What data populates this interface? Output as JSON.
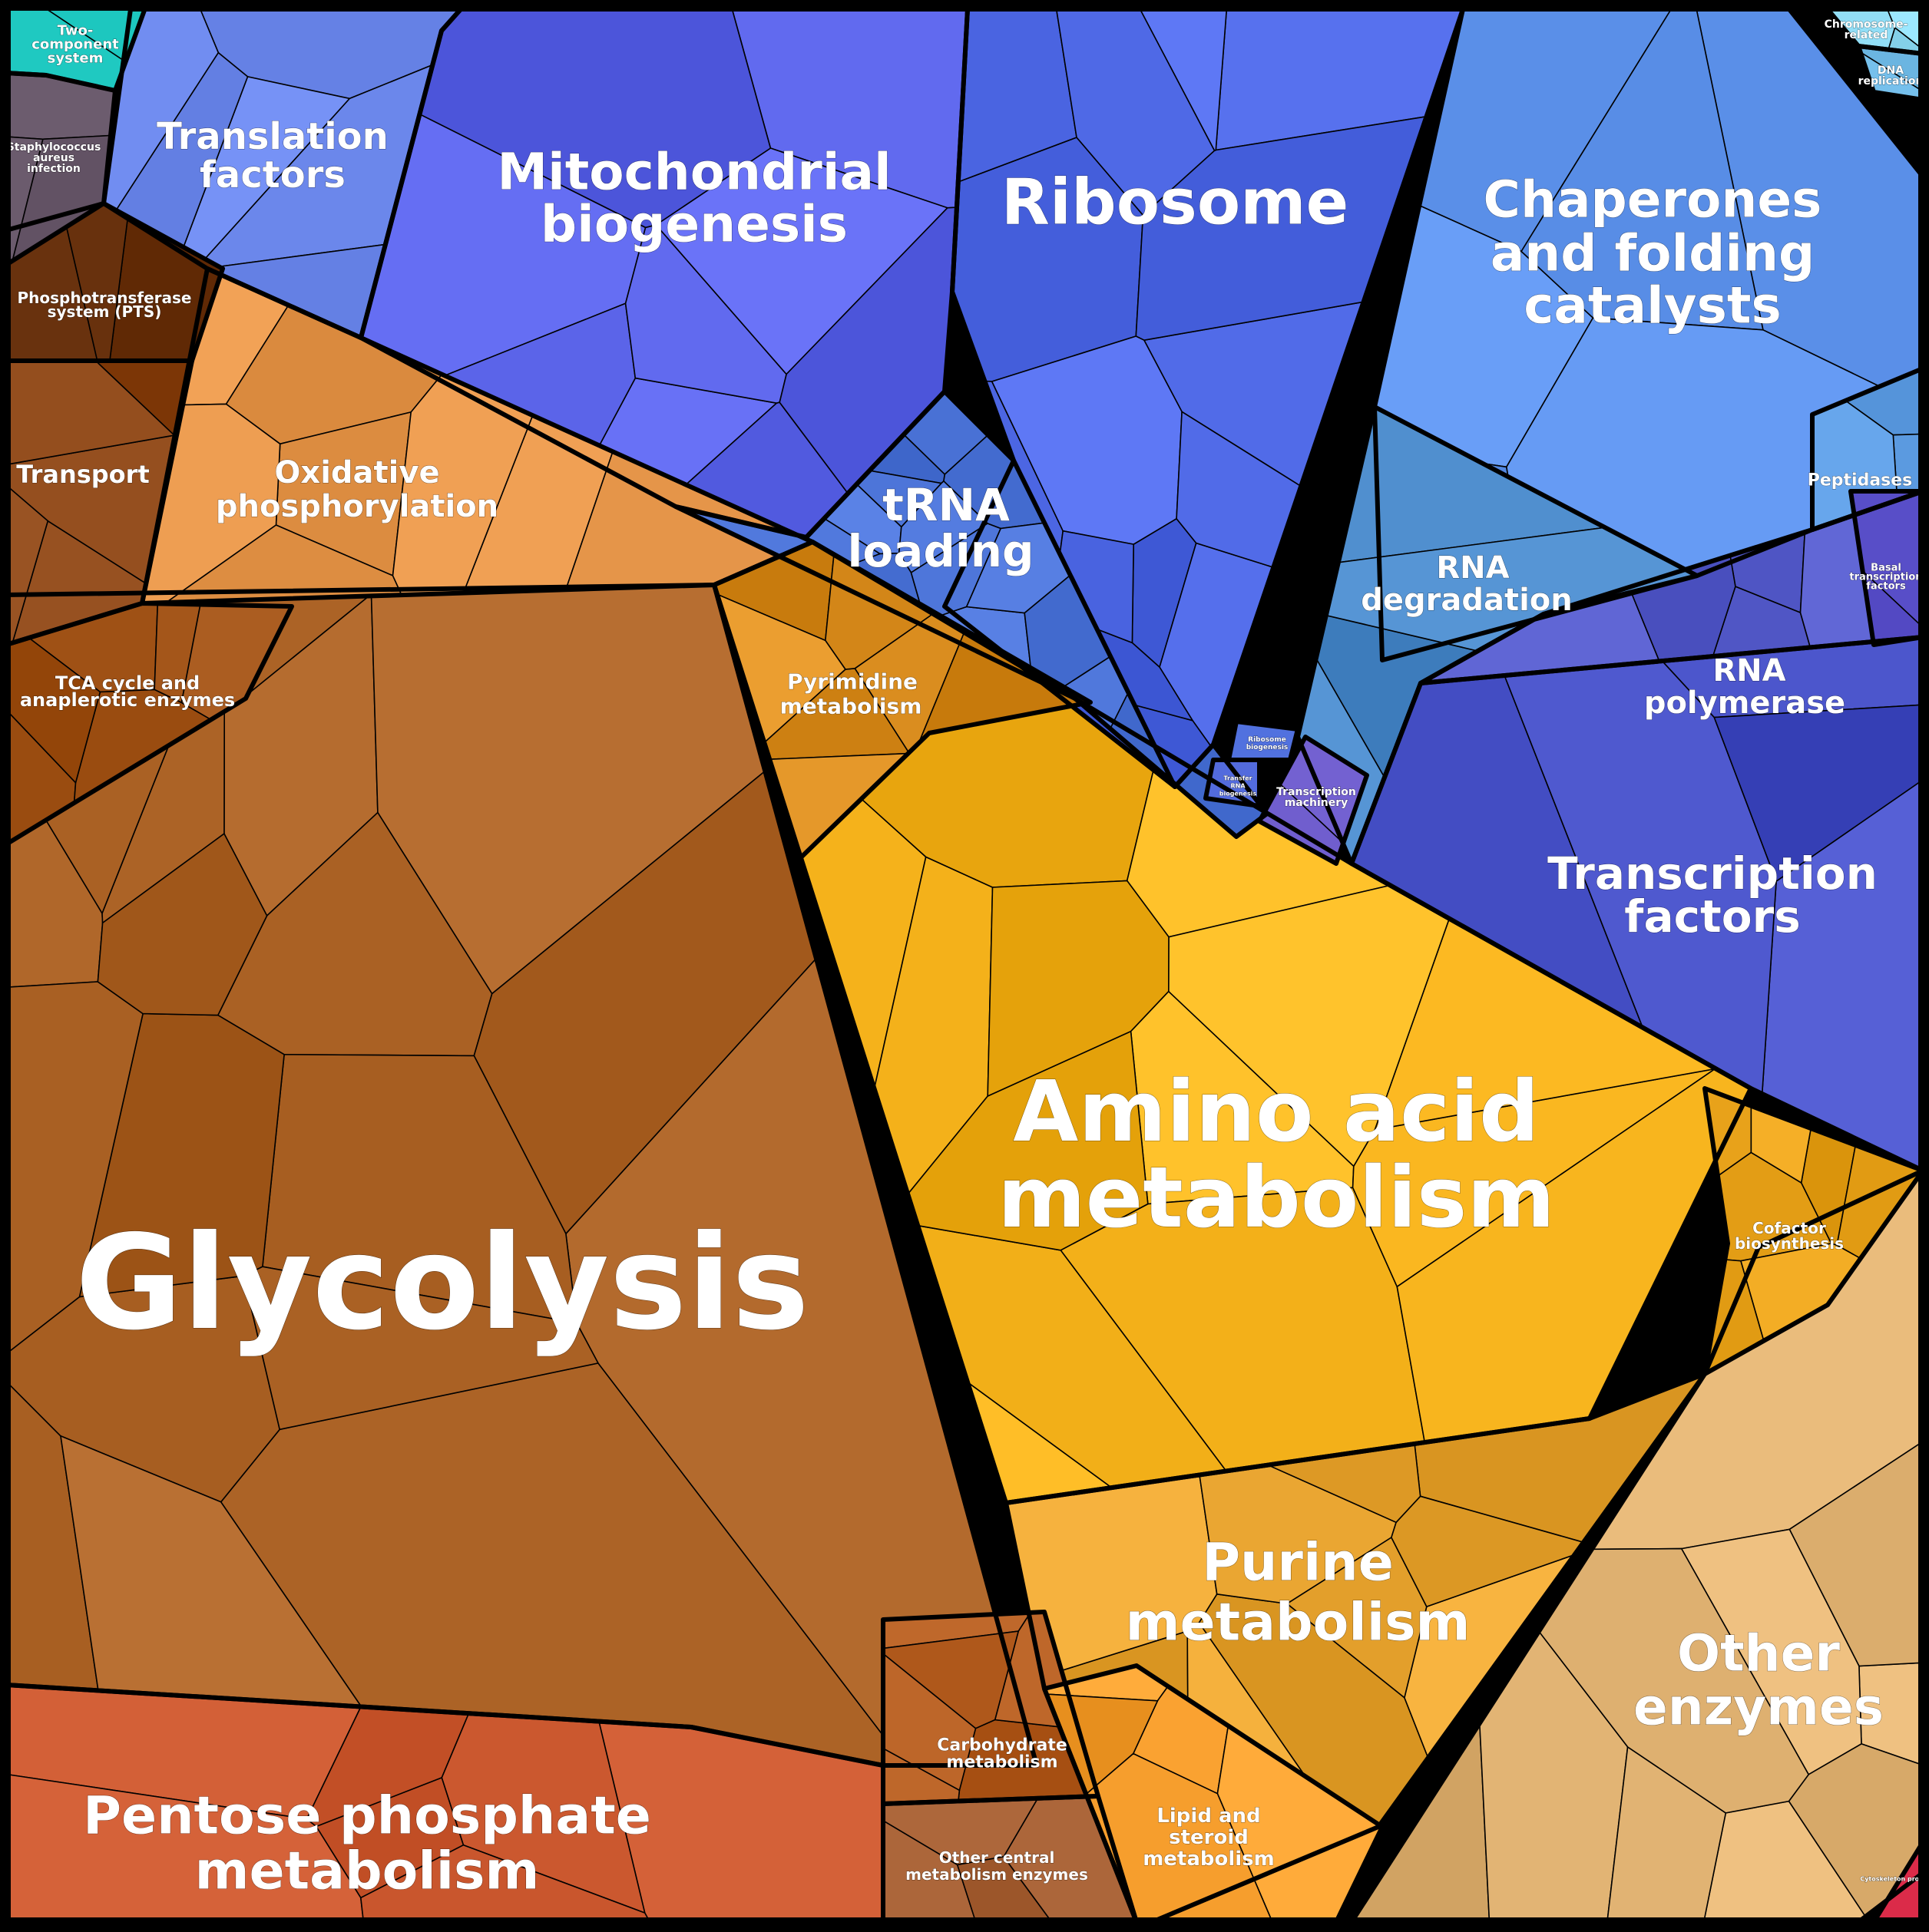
{
  "chart_data": {
    "type": "treemap",
    "subtype": "voronoi",
    "title": "",
    "groups": [
      {
        "name": "Glycolysis",
        "color": "#a85f22"
      },
      {
        "name": "Amino acid metabolism",
        "color": "#f6b31c"
      },
      {
        "name": "Ribosome",
        "color": "#4d67e4"
      },
      {
        "name": "Mitochondrial biogenesis",
        "color": "#5a63e8"
      },
      {
        "name": "Chaperones and folding catalysts",
        "color": "#5a8fe8"
      },
      {
        "name": "Transcription factors",
        "color": "#4650c6"
      },
      {
        "name": "Pentose phosphate metabolism",
        "color": "#c7542b"
      },
      {
        "name": "Purine metabolism",
        "color": "#e6a22e"
      },
      {
        "name": "Other enzymes",
        "color": "#e2b474"
      },
      {
        "name": "Oxidative phosphorylation",
        "color": "#e6964a"
      },
      {
        "name": "tRNA loading",
        "color": "#5078dc"
      },
      {
        "name": "Translation factors",
        "color": "#6a86ea"
      },
      {
        "name": "RNA polymerase",
        "color": "#4f55c4"
      },
      {
        "name": "RNA degradation",
        "color": "#4d8ccc"
      },
      {
        "name": "Transport",
        "color": "#8a4414"
      },
      {
        "name": "TCA cycle and anaplerotic enzymes",
        "color": "#a4561a"
      },
      {
        "name": "Pyrimidine metabolism",
        "color": "#d98c1e"
      },
      {
        "name": "Carbohydrate metabolism",
        "color": "#b0591c"
      },
      {
        "name": "Other central metabolism enzymes",
        "color": "#a05a2e"
      },
      {
        "name": "Lipid and steroid metabolism",
        "color": "#f39b2a"
      },
      {
        "name": "Cofactor biosynthesis",
        "color": "#e6a018"
      },
      {
        "name": "Peptidases",
        "color": "#5b9ae0"
      },
      {
        "name": "Phosphotransferase system (PTS)",
        "color": "#6b3410"
      },
      {
        "name": "Two-component system",
        "color": "#26d0c8"
      },
      {
        "name": "Staphylococcus aureus infection",
        "color": "#6e5e70"
      },
      {
        "name": "Basal transcription factors",
        "color": "#5046c0"
      },
      {
        "name": "Transcription machinery",
        "color": "#6a58c8"
      },
      {
        "name": "Chromosome-related",
        "color": "#8cd8f0"
      },
      {
        "name": "DNA replication",
        "color": "#7ac4f0"
      },
      {
        "name": "Cytoskeleton proteins",
        "color": "#e0304e"
      },
      {
        "name": "Ribosome biogenesis",
        "color": "#4a6ad8"
      },
      {
        "name": "Transfer RNA biogenesis",
        "color": "#4a62d4"
      }
    ]
  }
}
